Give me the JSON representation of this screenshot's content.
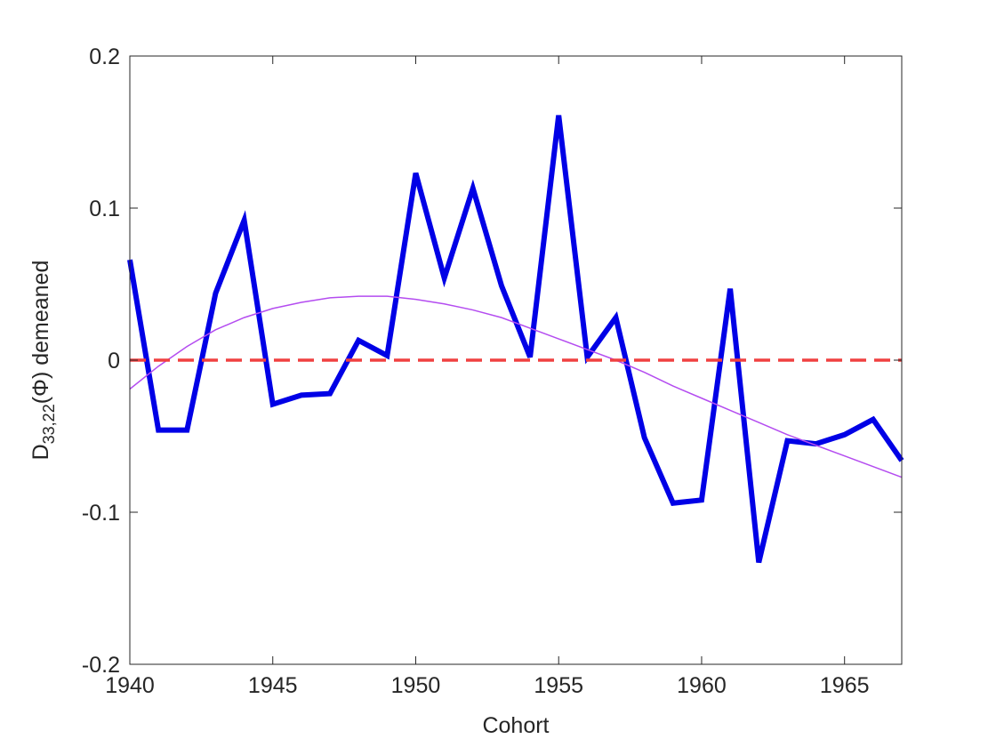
{
  "chart_data": {
    "type": "line",
    "title": "",
    "xlabel": "Cohort",
    "ylabel": {
      "main": "D",
      "subscript": "33,22",
      "rest": "(Φ) demeaned"
    },
    "xlim": [
      1940,
      1967
    ],
    "ylim": [
      -0.2,
      0.2
    ],
    "xticks": [
      1940,
      1945,
      1950,
      1955,
      1960,
      1965
    ],
    "yticks": [
      -0.2,
      -0.1,
      0,
      0.1,
      0.2
    ],
    "ytick_labels": [
      "-0.2",
      "-0.1",
      "0",
      "0.1",
      "0.2"
    ],
    "grid": false,
    "series": [
      {
        "style": "solid-thick",
        "color": "#0000e6",
        "x": [
          1940,
          1941,
          1942,
          1943,
          1944,
          1945,
          1946,
          1947,
          1948,
          1949,
          1950,
          1951,
          1952,
          1953,
          1954,
          1955,
          1956,
          1957,
          1958,
          1959,
          1960,
          1961,
          1962,
          1963,
          1964,
          1965,
          1966,
          1967
        ],
        "y": [
          0.066,
          -0.046,
          -0.046,
          0.044,
          0.092,
          -0.029,
          -0.023,
          -0.022,
          0.013,
          0.003,
          0.123,
          0.054,
          0.113,
          0.049,
          0.002,
          0.161,
          0.002,
          0.028,
          -0.051,
          -0.094,
          -0.092,
          0.047,
          -0.133,
          -0.053,
          -0.055,
          -0.049,
          -0.039,
          -0.066
        ]
      },
      {
        "style": "solid-thin",
        "color": "#b44cf0",
        "x": [
          1940,
          1941,
          1942,
          1943,
          1944,
          1945,
          1946,
          1947,
          1948,
          1949,
          1950,
          1951,
          1952,
          1953,
          1954,
          1955,
          1956,
          1957,
          1958,
          1959,
          1960,
          1961,
          1962,
          1963,
          1964,
          1965,
          1966,
          1967
        ],
        "y": [
          -0.019,
          -0.004,
          0.009,
          0.02,
          0.028,
          0.034,
          0.038,
          0.041,
          0.042,
          0.042,
          0.04,
          0.037,
          0.033,
          0.028,
          0.021,
          0.014,
          0.007,
          0.0,
          -0.008,
          -0.017,
          -0.025,
          -0.033,
          -0.041,
          -0.049,
          -0.056,
          -0.063,
          -0.07,
          -0.077
        ]
      },
      {
        "style": "dashed",
        "color": "#f04040",
        "x": [
          1940,
          1967
        ],
        "y": [
          0,
          0
        ]
      }
    ]
  }
}
